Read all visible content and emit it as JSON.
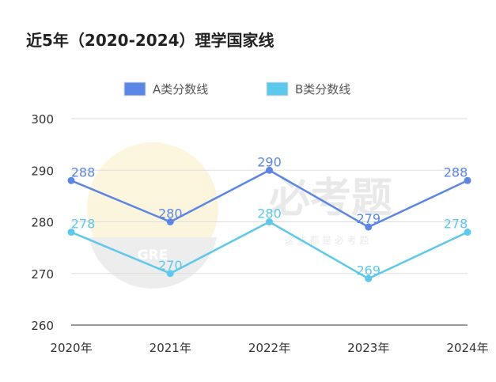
{
  "chart_data": {
    "type": "line",
    "title": "近5年（2020-2024）理学国家线",
    "categories": [
      "2020年",
      "2021年",
      "2022年",
      "2023年",
      "2024年"
    ],
    "series": [
      {
        "name": "A类分数线",
        "values": [
          288,
          280,
          290,
          279,
          288
        ],
        "color": "#5b86e5"
      },
      {
        "name": "B类分数线",
        "values": [
          278,
          270,
          280,
          269,
          278
        ],
        "color": "#5bc8ec"
      }
    ],
    "ylim": [
      260,
      300
    ],
    "yticks": [
      260,
      270,
      280,
      290,
      300
    ],
    "grid": true,
    "legend": "top-center"
  },
  "watermark": {
    "badge_text": "GRE",
    "big_text": "必考题",
    "small_text": "这 些 都 是 必 考 题"
  }
}
